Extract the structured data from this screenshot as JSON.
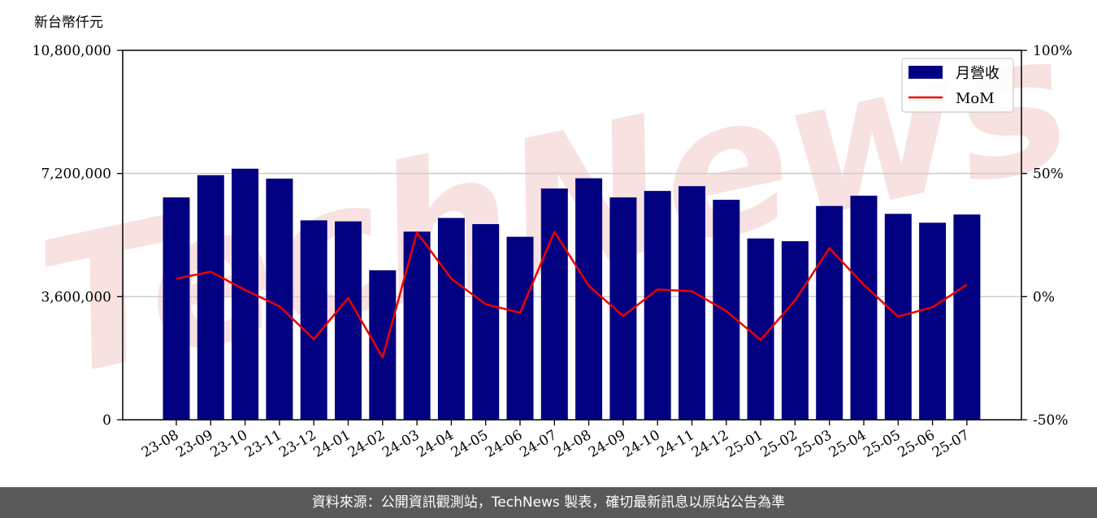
{
  "footer": {
    "source_text": "資料來源：公開資訊觀測站，TechNews 製表，確切最新訊息以原站公告為準"
  },
  "watermark": {
    "text": "TechNews"
  },
  "colors": {
    "bar": "#000080",
    "line": "#ee0000",
    "grid": "#cccccc",
    "watermark": "#f2c9c9"
  },
  "chart_data": {
    "type": "bar",
    "unit_label": "新台幣仟元",
    "categories": [
      "23-08",
      "23-09",
      "23-10",
      "23-11",
      "23-12",
      "24-01",
      "24-02",
      "24-03",
      "24-04",
      "24-05",
      "24-06",
      "24-07",
      "24-08",
      "24-09",
      "24-10",
      "24-11",
      "24-12",
      "25-01",
      "25-02",
      "25-03",
      "25-04",
      "25-05",
      "25-06",
      "25-07"
    ],
    "series": [
      {
        "name": "月營收",
        "type": "bar",
        "axis": "left",
        "values": [
          6500000,
          7150000,
          7340000,
          7050000,
          5830000,
          5800000,
          4370000,
          5500000,
          5900000,
          5720000,
          5350000,
          6760000,
          7060000,
          6500000,
          6690000,
          6830000,
          6430000,
          5300000,
          5220000,
          6250000,
          6550000,
          6020000,
          5760000,
          6000000
        ]
      },
      {
        "name": "MoM",
        "type": "line",
        "axis": "right",
        "values": [
          7.3,
          10.1,
          2.7,
          -3.9,
          -17.3,
          -0.5,
          -24.7,
          26.1,
          7.3,
          -3.1,
          -6.5,
          26.3,
          4.4,
          -7.9,
          2.9,
          2.2,
          -5.9,
          -17.6,
          -1.5,
          19.7,
          4.8,
          -8.1,
          -4.3,
          4.9
        ]
      }
    ],
    "y_left": {
      "min": 0,
      "max": 10800000,
      "ticks": [
        "0",
        "3,600,000",
        "7,200,000",
        "10,800,000"
      ],
      "tick_values": [
        0,
        3600000,
        7200000,
        10800000
      ]
    },
    "y_right": {
      "min": -50,
      "max": 100,
      "ticks": [
        "-50%",
        "0%",
        "50%",
        "100%"
      ],
      "tick_values": [
        -50,
        0,
        50,
        100
      ]
    },
    "grid": true,
    "legend": "top-right"
  }
}
